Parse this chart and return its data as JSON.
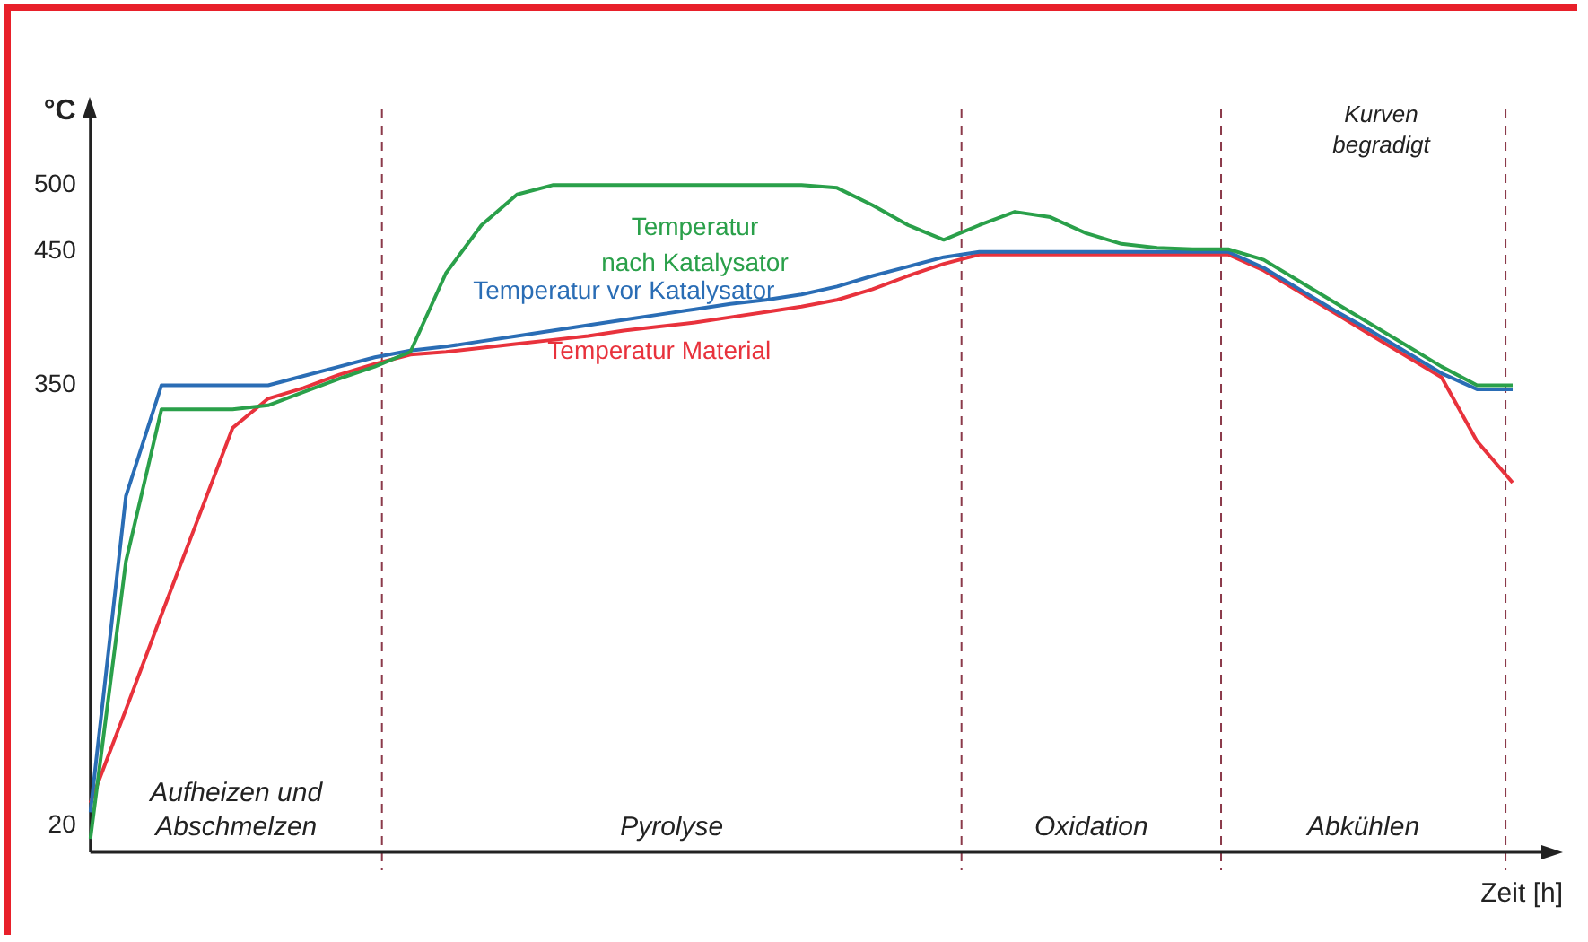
{
  "chart_data": {
    "type": "line",
    "xlabel": "Zeit [h]",
    "ylabel": "°C",
    "categories": [
      null,
      null,
      null,
      null,
      null,
      null,
      null,
      null,
      null,
      null,
      null,
      null,
      null,
      null,
      null,
      null,
      null,
      null,
      null,
      null,
      null,
      null,
      null,
      null,
      null,
      null,
      null,
      null,
      null,
      null,
      null,
      null,
      null,
      null,
      null,
      null,
      null,
      null,
      null,
      null,
      null
    ],
    "series": [
      {
        "name": "Temperatur nach Katalysator",
        "color": "#2aa04a",
        "values": [
          10,
          218,
          332,
          332,
          332,
          335,
          345,
          355,
          364,
          375,
          434,
          470,
          493,
          500,
          500,
          500,
          500,
          500,
          500,
          500,
          500,
          498,
          485,
          470,
          459,
          470,
          480,
          476,
          464,
          456,
          453,
          452,
          452,
          444,
          428,
          412,
          396,
          380,
          364,
          350,
          350
        ]
      },
      {
        "name": "Temperatur vor Katalysator",
        "color": "#2a6db5",
        "values": [
          30,
          267,
          350,
          350,
          350,
          350,
          357,
          364,
          371,
          376,
          379,
          383,
          387,
          391,
          395,
          399,
          403,
          407,
          411,
          414,
          418,
          424,
          432,
          439,
          446,
          450,
          450,
          450,
          450,
          450,
          450,
          450,
          450,
          438,
          422,
          406,
          391,
          375,
          359,
          347,
          347
        ]
      },
      {
        "name": "Temperatur Material",
        "color": "#e8323c",
        "values": [
          37,
          107,
          178,
          248,
          318,
          340,
          348,
          358,
          366,
          373,
          375,
          378,
          381,
          384,
          387,
          391,
          394,
          397,
          401,
          405,
          409,
          414,
          422,
          432,
          441,
          448,
          448,
          448,
          448,
          448,
          448,
          448,
          448,
          436,
          420,
          404,
          388,
          372,
          356,
          308,
          277
        ]
      }
    ],
    "ylim": [
      0,
      550
    ],
    "yticks": [
      20,
      350,
      450,
      500
    ],
    "grid": false,
    "legend": false,
    "tick_labels": "y",
    "marker": "none",
    "line_style": "solid",
    "annotations": [
      "Aufheizen und Abschmelzen",
      "Pyrolyse",
      "Oxidation",
      "Abkühlen",
      "Kurven begradigt"
    ]
  }
}
